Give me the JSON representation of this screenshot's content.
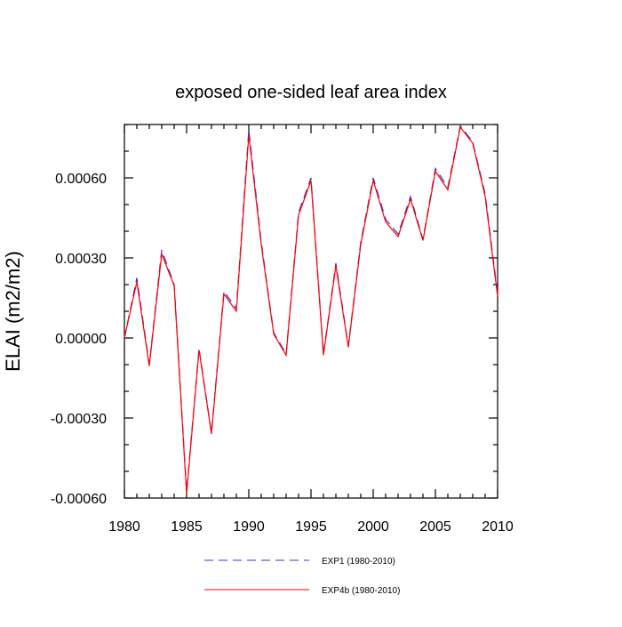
{
  "chart_data": {
    "type": "line",
    "title": "exposed one-sided leaf area index",
    "xlabel": "",
    "ylabel": "ELAI  (m2/m2)",
    "xlim": [
      1980,
      2010
    ],
    "ylim": [
      -0.0006,
      0.0008
    ],
    "x_ticks": [
      1980,
      1985,
      1990,
      1995,
      2000,
      2005,
      2010
    ],
    "y_ticks": [
      -0.0006,
      -0.0003,
      0.0,
      0.0003,
      0.0006
    ],
    "y_tick_labels": [
      "-0.00060",
      "-0.00030",
      "0.00000",
      "0.00030",
      "0.00060"
    ],
    "grid": false,
    "legend_position": "bottom",
    "x": [
      1980,
      1981,
      1982,
      1983,
      1984,
      1985,
      1986,
      1987,
      1988,
      1989,
      1990,
      1991,
      1992,
      1993,
      1994,
      1995,
      1996,
      1997,
      1998,
      1999,
      2000,
      2001,
      2002,
      2003,
      2004,
      2005,
      2006,
      2007,
      2008,
      2009,
      2010
    ],
    "series": [
      {
        "name": "EXP1 (1980-2010)",
        "color": "#3333cc",
        "style": "dashed",
        "values": [
          0.0,
          0.000225,
          -0.0001,
          0.00033,
          0.0002,
          -0.000575,
          -4e-05,
          -0.000355,
          0.000175,
          0.00011,
          0.00078,
          0.00036,
          2e-05,
          -6e-05,
          0.00047,
          0.0006,
          -6e-05,
          0.00028,
          -3e-05,
          0.00036,
          0.0006,
          0.000445,
          0.00039,
          0.00053,
          0.00037,
          0.000635,
          0.000565,
          0.000795,
          0.000735,
          0.00054,
          0.000165
        ]
      },
      {
        "name": "EXP4b (1980-2010)",
        "color": "#ff0000",
        "style": "solid",
        "values": [
          0.0,
          0.00021,
          -0.000105,
          0.000315,
          0.000195,
          -0.000585,
          -4.5e-05,
          -0.00036,
          0.000165,
          0.0001,
          0.00076,
          0.00035,
          1.5e-05,
          -6.5e-05,
          0.00046,
          0.00059,
          -6.5e-05,
          0.00027,
          -3.5e-05,
          0.00035,
          0.00059,
          0.000435,
          0.00038,
          0.00052,
          0.000365,
          0.000625,
          0.000555,
          0.00079,
          0.00073,
          0.00053,
          0.000155
        ]
      }
    ]
  }
}
